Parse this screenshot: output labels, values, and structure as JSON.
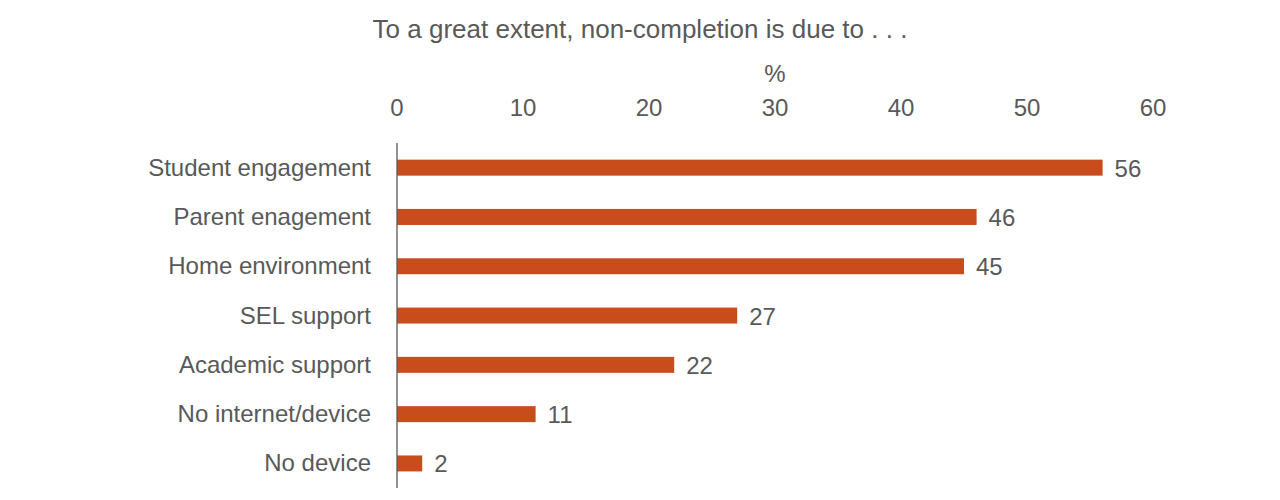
{
  "chart_data": {
    "type": "bar",
    "orientation": "horizontal",
    "title": "To a great extent, non-completion is due to . . .",
    "x_label": "%",
    "categories": [
      "Student engagement",
      "Parent enagement",
      "Home environment",
      "SEL support",
      "Academic support",
      "No internet/device",
      "No device"
    ],
    "values": [
      56,
      46,
      45,
      27,
      22,
      11,
      2
    ],
    "color": "#c94c1d",
    "xlim": [
      0,
      60
    ],
    "xticks": [
      0,
      10,
      20,
      30,
      40,
      50,
      60
    ],
    "grid": false,
    "data_labels": true
  }
}
